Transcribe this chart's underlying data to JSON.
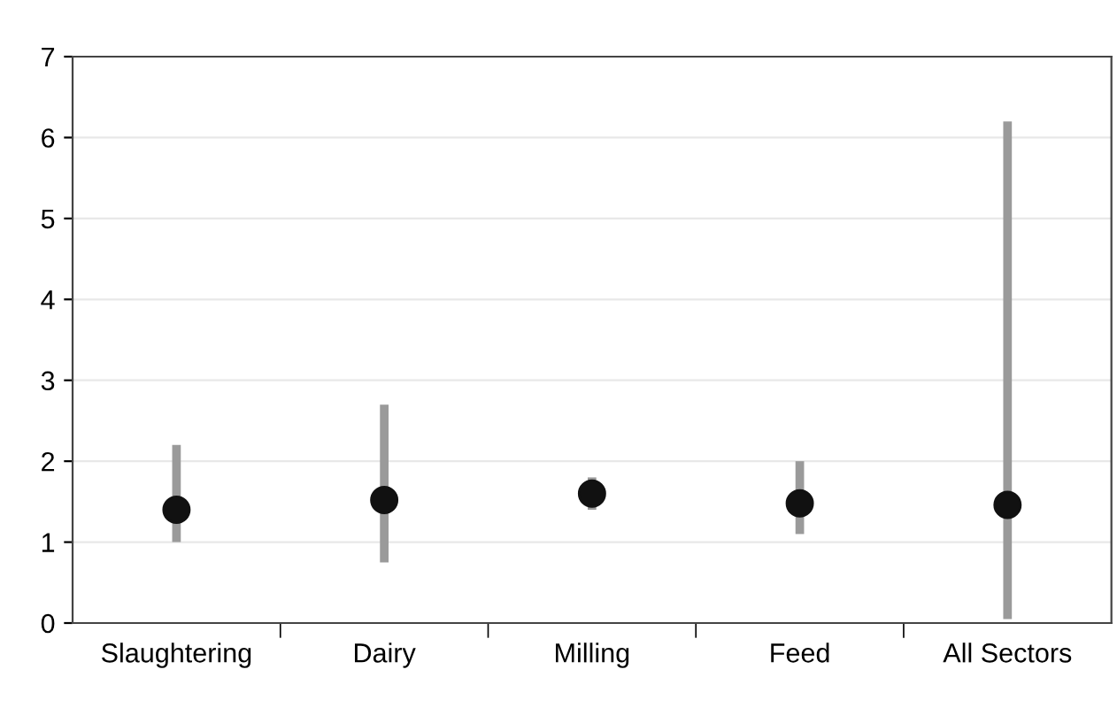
{
  "chart_data": {
    "type": "scatter",
    "categories": [
      "Slaughtering",
      "Dairy",
      "Milling",
      "Feed",
      "All Sectors"
    ],
    "series": [
      {
        "color": "#111111",
        "values": [
          1.4,
          1.52,
          1.6,
          1.48,
          1.46
        ],
        "errors": [
          [
            1.0,
            2.2
          ],
          [
            0.75,
            2.7
          ],
          [
            1.4,
            1.8
          ],
          [
            1.1,
            2.0
          ],
          [
            0.05,
            6.2
          ]
        ]
      }
    ],
    "marker": "circle",
    "ylim": [
      0,
      7
    ],
    "yticks": [
      0,
      1,
      2,
      3,
      4,
      5,
      6,
      7
    ],
    "grid": "y"
  }
}
